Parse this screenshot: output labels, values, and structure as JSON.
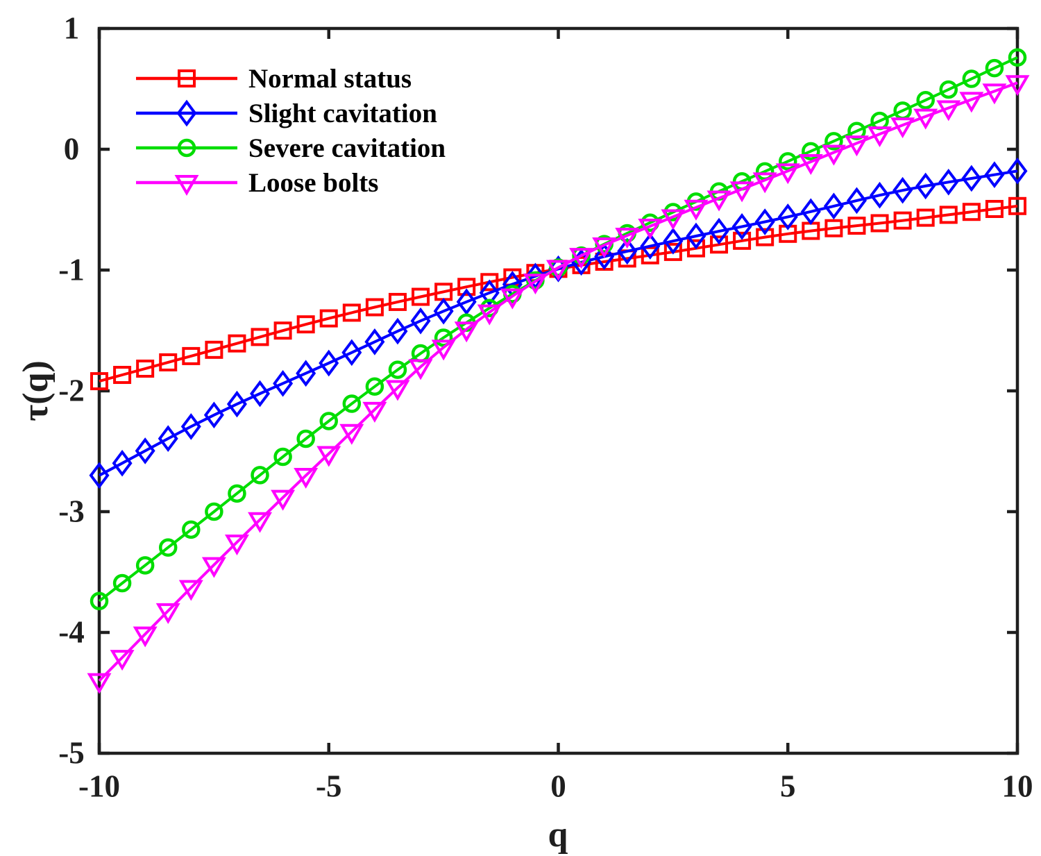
{
  "chart_data": {
    "type": "line",
    "title": "",
    "xlabel": "q",
    "ylabel": "τ(q)",
    "xlim": [
      -10,
      10
    ],
    "ylim": [
      -5,
      1
    ],
    "x_ticks": [
      -10,
      -5,
      0,
      5,
      10
    ],
    "y_ticks": [
      1,
      0,
      -1,
      -2,
      -3,
      -4,
      -5
    ],
    "x_tick_labels": [
      "-10",
      "-5",
      "0",
      "5",
      "10"
    ],
    "y_tick_labels": [
      "1",
      "0",
      "-1",
      "-2",
      "-3",
      "-4",
      "-5"
    ],
    "grid": false,
    "legend_position": "upper-left",
    "legend_frame": false,
    "marker_step_q": 0.5,
    "q_anchors": [
      -10,
      -7.5,
      -5,
      -2.5,
      0,
      2.5,
      5,
      7.5,
      10
    ],
    "series": [
      {
        "name": "Normal status",
        "color": "#ff0000",
        "marker": "square",
        "values": [
          -1.92,
          -1.66,
          -1.4,
          -1.18,
          -0.99,
          -0.85,
          -0.7,
          -0.59,
          -0.47
        ]
      },
      {
        "name": "Slight cavitation",
        "color": "#0000ff",
        "marker": "diamond",
        "values": [
          -2.7,
          -2.2,
          -1.77,
          -1.34,
          -0.99,
          -0.76,
          -0.56,
          -0.34,
          -0.18
        ]
      },
      {
        "name": "Severe cavitation",
        "color": "#00dd00",
        "marker": "circle",
        "values": [
          -3.74,
          -3.0,
          -2.25,
          -1.56,
          -0.98,
          -0.52,
          -0.1,
          0.32,
          0.76
        ]
      },
      {
        "name": "Loose bolts",
        "color": "#ff00ff",
        "marker": "triangle-down",
        "values": [
          -4.4,
          -3.44,
          -2.52,
          -1.64,
          -0.98,
          -0.56,
          -0.18,
          0.2,
          0.55
        ]
      }
    ],
    "axis_color": "#1f1f1f"
  }
}
